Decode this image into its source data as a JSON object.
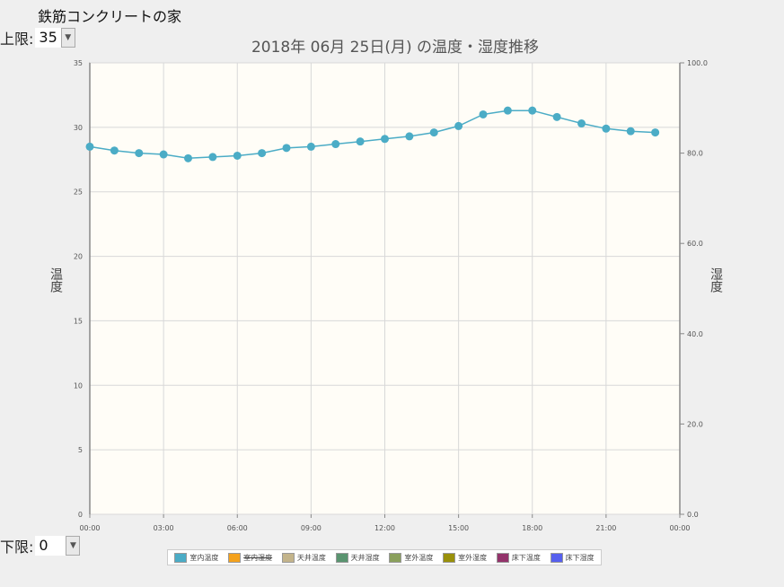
{
  "page": {
    "title": "鉄筋コンクリートの家"
  },
  "controls": {
    "upper_label": "上限:",
    "upper_value": "35",
    "lower_label": "下限:",
    "lower_value": "0"
  },
  "chart_data": {
    "type": "line",
    "title": "2018年 06月 25日(月) の温度・湿度推移",
    "ylabel": "温度",
    "y2label": "湿度",
    "ylim": [
      0,
      35
    ],
    "y2lim": [
      0,
      100
    ],
    "yticks": [
      "0",
      "5",
      "10",
      "15",
      "20",
      "25",
      "30",
      "35"
    ],
    "y2ticks": [
      "0.0",
      "20.0",
      "40.0",
      "60.0",
      "80.0",
      "100.0"
    ],
    "xticks": [
      "00:00",
      "03:00",
      "06:00",
      "09:00",
      "12:00",
      "15:00",
      "18:00",
      "21:00",
      "00:00"
    ],
    "grid": true,
    "legend_position": "bottom",
    "series": [
      {
        "name": "室内温度",
        "color": "#4bacc6",
        "axis": "left",
        "x": [
          0,
          1,
          2,
          3,
          4,
          5,
          6,
          7,
          8,
          9,
          10,
          11,
          12,
          13,
          14,
          15,
          16,
          17,
          18,
          19,
          20,
          21,
          22,
          23
        ],
        "values": [
          28.5,
          28.2,
          28.0,
          27.9,
          27.6,
          27.7,
          27.8,
          28.0,
          28.4,
          28.5,
          28.7,
          28.9,
          29.1,
          29.3,
          29.6,
          30.1,
          31.0,
          31.3,
          31.3,
          30.8,
          30.3,
          29.9,
          29.7,
          29.6
        ]
      }
    ],
    "legend": [
      {
        "name": "室内温度",
        "color": "#4bacc6",
        "hidden": false
      },
      {
        "name": "室内湿度",
        "color": "#f4a21d",
        "hidden": true
      },
      {
        "name": "天井温度",
        "color": "#c3b48b",
        "hidden": false
      },
      {
        "name": "天井湿度",
        "color": "#5a9470",
        "hidden": false
      },
      {
        "name": "室外温度",
        "color": "#8aa05c",
        "hidden": false
      },
      {
        "name": "室外湿度",
        "color": "#99900a",
        "hidden": false
      },
      {
        "name": "床下温度",
        "color": "#93336b",
        "hidden": false
      },
      {
        "name": "床下湿度",
        "color": "#5660ee",
        "hidden": false
      }
    ]
  }
}
